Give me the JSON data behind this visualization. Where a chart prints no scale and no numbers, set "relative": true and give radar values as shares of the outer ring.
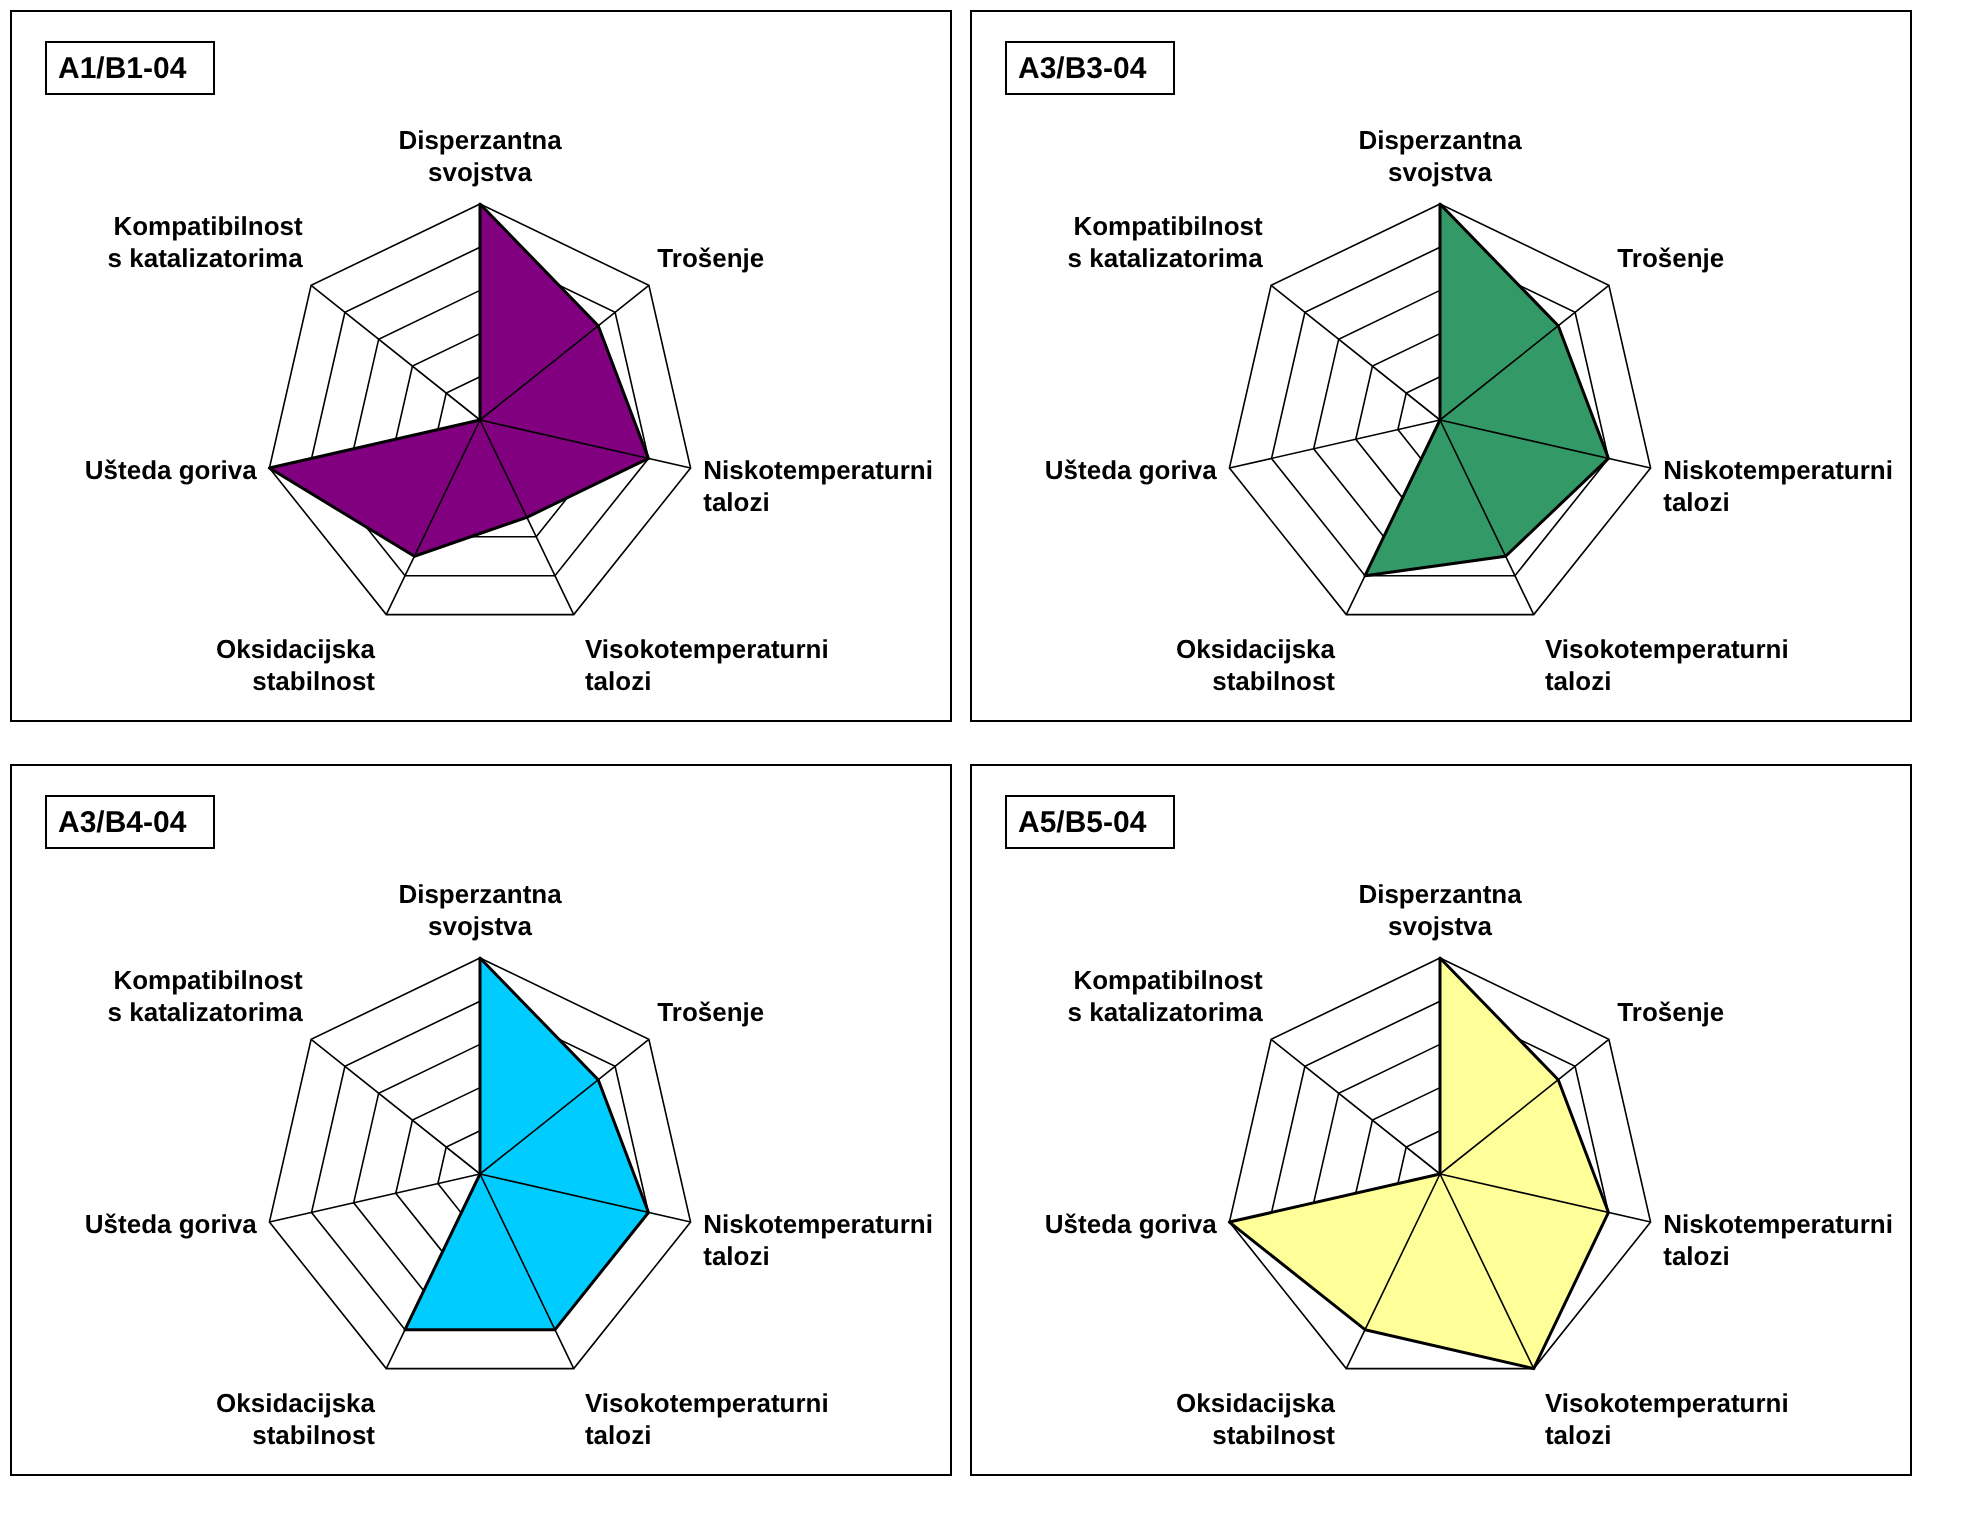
{
  "chart_data": [
    {
      "type": "radar",
      "title": "A1/B1-04",
      "relative": true,
      "grid": true,
      "categories": [
        "Disperzantna\nsvojstva",
        "Trošenje",
        "Niskotemperaturni\ntalozi",
        "Visokotemperaturni\ntalozi",
        "Oksidacijska\nstabilnost",
        "Ušteda goriva",
        "Kompatibilnost\ns katalizatorima"
      ],
      "series": [
        {
          "color": "#800080",
          "values": [
            1.0,
            0.7,
            0.8,
            0.5,
            0.7,
            1.0,
            0.0
          ]
        }
      ]
    },
    {
      "type": "radar",
      "title": "A3/B3-04",
      "relative": true,
      "grid": true,
      "categories": [
        "Disperzantna\nsvojstva",
        "Trošenje",
        "Niskotemperaturni\ntalozi",
        "Visokotemperaturni\ntalozi",
        "Oksidacijska\nstabilnost",
        "Ušteda goriva",
        "Kompatibilnost\ns katalizatorima"
      ],
      "series": [
        {
          "color": "#339966",
          "values": [
            1.0,
            0.7,
            0.8,
            0.7,
            0.8,
            0.0,
            0.0
          ]
        }
      ]
    },
    {
      "type": "radar",
      "title": "A3/B4-04",
      "relative": true,
      "grid": true,
      "categories": [
        "Disperzantna\nsvojstva",
        "Trošenje",
        "Niskotemperaturni\ntalozi",
        "Visokotemperaturni\ntalozi",
        "Oksidacijska\nstabilnost",
        "Ušteda goriva",
        "Kompatibilnost\ns katalizatorima"
      ],
      "series": [
        {
          "color": "#00ccff",
          "values": [
            1.0,
            0.7,
            0.8,
            0.8,
            0.8,
            0.0,
            0.0
          ]
        }
      ]
    },
    {
      "type": "radar",
      "title": "A5/B5-04",
      "relative": true,
      "grid": true,
      "categories": [
        "Disperzantna\nsvojstva",
        "Trošenje",
        "Niskotemperaturni\ntalozi",
        "Visokotemperaturni\ntalozi",
        "Oksidacijska\nstabilnost",
        "Ušteda goriva",
        "Kompatibilnost\ns katalizatorima"
      ],
      "series": [
        {
          "color": "#ffff99",
          "values": [
            1.0,
            0.7,
            0.8,
            1.0,
            0.8,
            1.0,
            0.0
          ]
        }
      ]
    }
  ]
}
